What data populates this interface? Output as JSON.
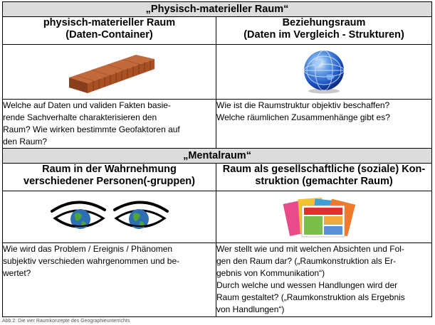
{
  "section1": {
    "title": "„Physisch-materieller Raum“",
    "left": {
      "heading": [
        "physisch-materieller Raum",
        "(Daten-Container)"
      ],
      "illustration_icon": "container-icon",
      "questions": [
        "Welche auf Daten und validen Fakten basie-",
        "rende Sachverhalte charakterisieren den",
        "Raum? Wie wirken bestimmte Geofaktoren auf",
        "den Raum?"
      ]
    },
    "right": {
      "heading": [
        "Beziehungsraum",
        "(Daten im Vergleich - Strukturen)"
      ],
      "illustration_icon": "globe-icon",
      "questions": [
        "Wie ist die Raumstruktur objektiv beschaffen?",
        "Welche räumlichen Zusammenhänge gibt es?"
      ]
    }
  },
  "section2": {
    "title": "„Mentalraum“",
    "left": {
      "heading": [
        "Raum in der Wahrnehmung",
        "verschiedener Personen(-gruppen)"
      ],
      "illustration_icon": "eyes-globe-icon",
      "questions": [
        "Wie wird das Problem / Ereignis / Phänomen",
        "subjektiv verschieden wahrgenommen und be-",
        "wertet?"
      ]
    },
    "right": {
      "heading": [
        "Raum als gesellschaftliche (soziale) Kon-",
        "struktion (gemachter Raum)"
      ],
      "illustration_icon": "magazines-icon",
      "questions": [
        "Wer stellt wie und mit welchen Absichten und Fol-",
        "gen den Raum dar? („Raumkonstruktion als Er-",
        "gebnis von Kommunikation“)",
        "Durch welche und wessen Handlungen wird der",
        "Raum gestaltet? („Raumkonstruktion als Ergebnis",
        "von Handlungen“)"
      ]
    }
  },
  "caption": "Abb.2: Die vier Raumkonzepte des Geographieunterrichts",
  "colors": {
    "section_header_bg": "#dcdcdc",
    "border": "#000000"
  }
}
